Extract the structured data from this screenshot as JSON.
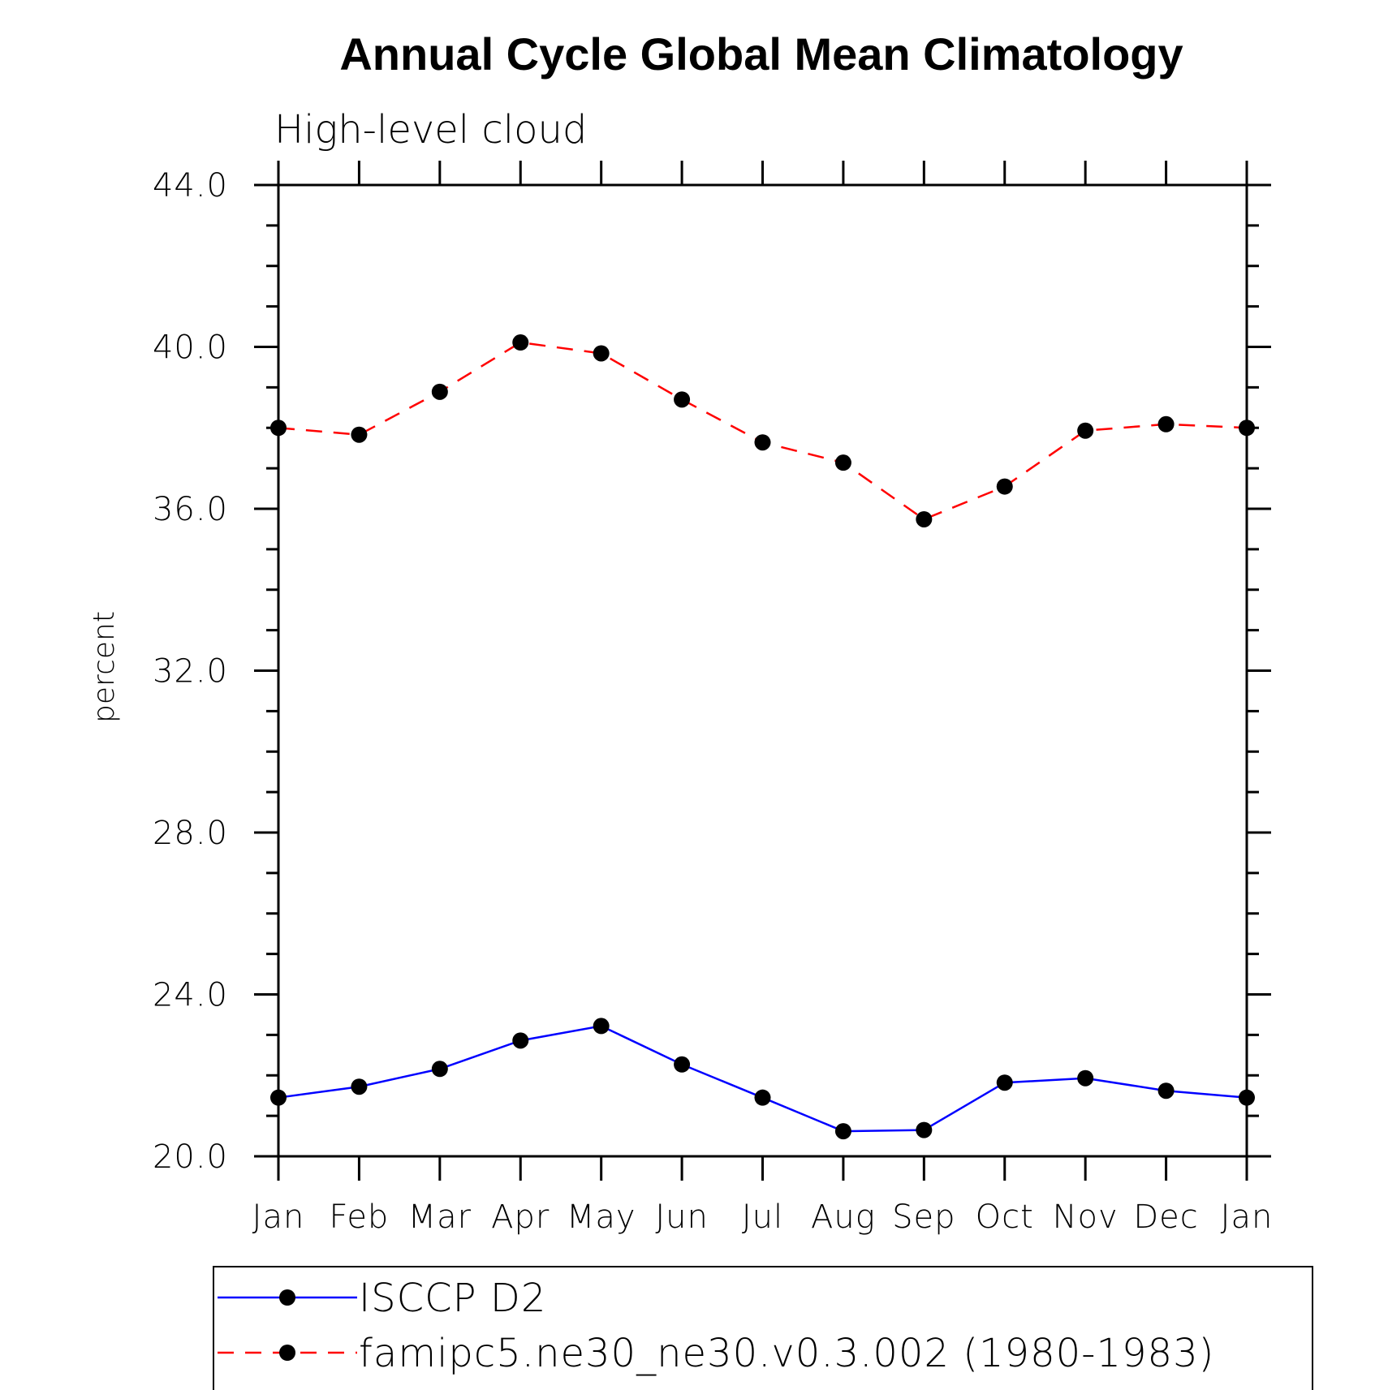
{
  "chart_data": {
    "type": "line",
    "title": "Annual Cycle Global Mean Climatology",
    "subtitle": "High-level cloud",
    "xlabel": "",
    "ylabel": "percent",
    "categories": [
      "Jan",
      "Feb",
      "Mar",
      "Apr",
      "May",
      "Jun",
      "Jul",
      "Aug",
      "Sep",
      "Oct",
      "Nov",
      "Dec",
      "Jan"
    ],
    "ylim": [
      20.0,
      44.0
    ],
    "yticks": [
      "20.0",
      "24.0",
      "28.0",
      "32.0",
      "36.0",
      "40.0",
      "44.0"
    ],
    "ytick_values": [
      20,
      24,
      28,
      32,
      36,
      40,
      44
    ],
    "series": [
      {
        "name": "ISCCP D2",
        "color": "#0000ff",
        "dash": "solid",
        "values": [
          21.45,
          21.72,
          22.16,
          22.86,
          23.22,
          22.27,
          21.45,
          20.62,
          20.65,
          21.82,
          21.93,
          21.62,
          21.45
        ]
      },
      {
        "name": "famipc5.ne30_ne30.v0.3.002 (1980-1983)",
        "color": "#ff0000",
        "dash": "dashed",
        "values": [
          38.0,
          37.83,
          38.89,
          40.11,
          39.84,
          38.7,
          37.64,
          37.14,
          35.74,
          36.55,
          37.93,
          38.09,
          38.0
        ]
      }
    ]
  }
}
